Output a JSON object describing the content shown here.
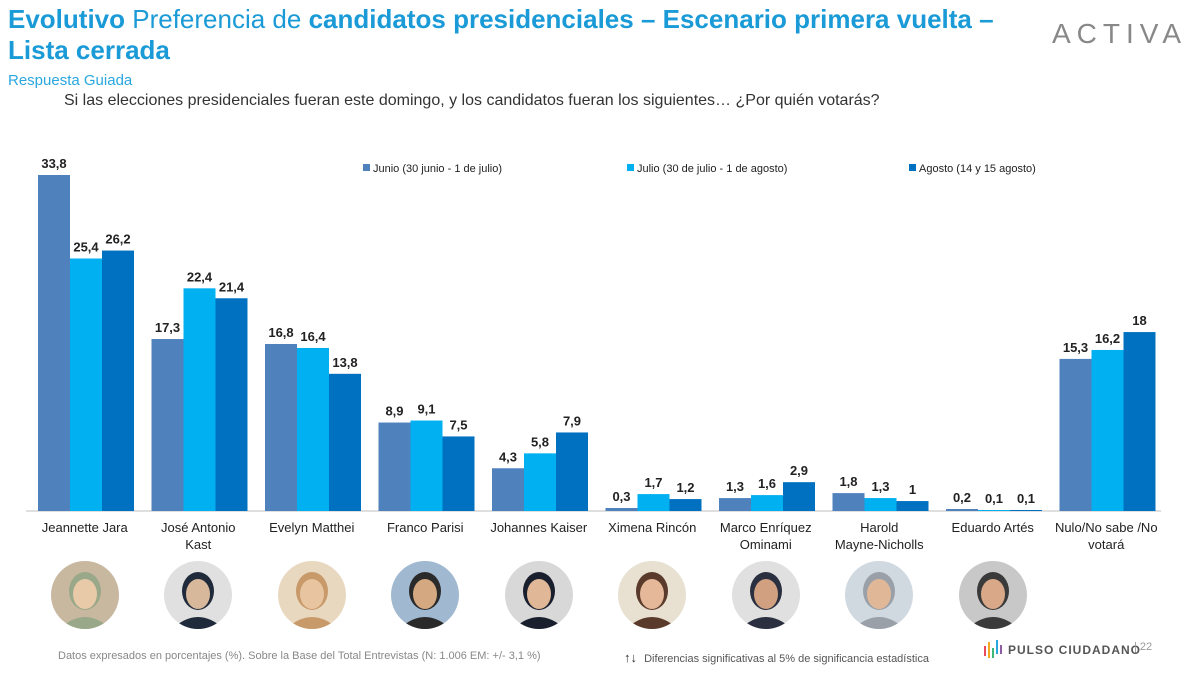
{
  "header": {
    "title_bold_1": "Evolutivo",
    "title_light": "Preferencia de",
    "title_bold_2": "candidatos presidenciales – Escenario primera vuelta –",
    "title_bold_3": "Lista cerrada",
    "subtitle": "Respuesta Guiada",
    "question": "Si las elecciones presidenciales fueran este domingo, y los candidatos fueran los siguientes… ¿Por quién votarás?",
    "logo": "ACTIVA"
  },
  "colors": {
    "title": "#1a9ad6",
    "series": [
      "#4f81bd",
      "#00b0f0",
      "#0070c0"
    ]
  },
  "chart_data": {
    "type": "bar",
    "categories": [
      [
        "Jeannette Jara"
      ],
      [
        "José Antonio",
        "Kast"
      ],
      [
        "Evelyn Matthei"
      ],
      [
        "Franco Parisi"
      ],
      [
        "Johannes Kaiser"
      ],
      [
        "Ximena Rincón"
      ],
      [
        "Marco Enríquez",
        "Ominami"
      ],
      [
        "Harold",
        "Mayne-Nicholls"
      ],
      [
        "Eduardo Artés"
      ],
      [
        "Nulo/No sabe /No",
        "votará"
      ]
    ],
    "series": [
      {
        "name": "Junio (30 junio - 1 de julio)",
        "values": [
          33.8,
          17.3,
          16.8,
          8.9,
          4.3,
          0.3,
          1.3,
          1.8,
          0.2,
          15.3
        ],
        "labels": [
          "33,8",
          "17,3",
          "16,8",
          "8,9",
          "4,3",
          "0,3",
          "1,3",
          "1,8",
          "0,2",
          "15,3"
        ]
      },
      {
        "name": "Julio (30 de julio - 1 de agosto)",
        "values": [
          25.4,
          22.4,
          16.4,
          9.1,
          5.8,
          1.7,
          1.6,
          1.3,
          0.1,
          16.2
        ],
        "labels": [
          "25,4",
          "22,4",
          "16,4",
          "9,1",
          "5,8",
          "1,7",
          "1,6",
          "1,3",
          "0,1",
          "16,2"
        ]
      },
      {
        "name": "Agosto (14 y 15 agosto)",
        "values": [
          26.2,
          21.4,
          13.8,
          7.5,
          7.9,
          1.2,
          2.9,
          1,
          0.1,
          18
        ],
        "labels": [
          "26,2",
          "21,4",
          "13,8",
          "7,5",
          "7,9",
          "1,2",
          "2,9",
          "1",
          "0,1",
          "18"
        ]
      }
    ],
    "ylim": [
      0,
      33.8
    ],
    "legend": "top",
    "grid": false
  },
  "portraits": [
    {
      "name": "Jeannette Jara",
      "icon": "person-portrait-icon"
    },
    {
      "name": "José Antonio Kast",
      "icon": "person-portrait-icon"
    },
    {
      "name": "Evelyn Matthei",
      "icon": "person-portrait-icon"
    },
    {
      "name": "Franco Parisi",
      "icon": "person-portrait-icon"
    },
    {
      "name": "Johannes Kaiser",
      "icon": "person-portrait-icon"
    },
    {
      "name": "Ximena Rincón",
      "icon": "person-portrait-icon"
    },
    {
      "name": "Marco Enríquez Ominami",
      "icon": "person-portrait-icon"
    },
    {
      "name": "Harold Mayne-Nicholls",
      "icon": "person-portrait-icon"
    },
    {
      "name": "Eduardo Artés",
      "icon": "person-portrait-icon"
    }
  ],
  "footer": {
    "note": "Datos expresados en porcentajes (%). Sobre la Base del Total Entrevistas (N: 1.006  EM: +/- 3,1 %)",
    "significance": "Diferencias  significativas  al 5% de significancia estadística",
    "brand": "PULSO CIUDADANO",
    "page": "|  22"
  }
}
